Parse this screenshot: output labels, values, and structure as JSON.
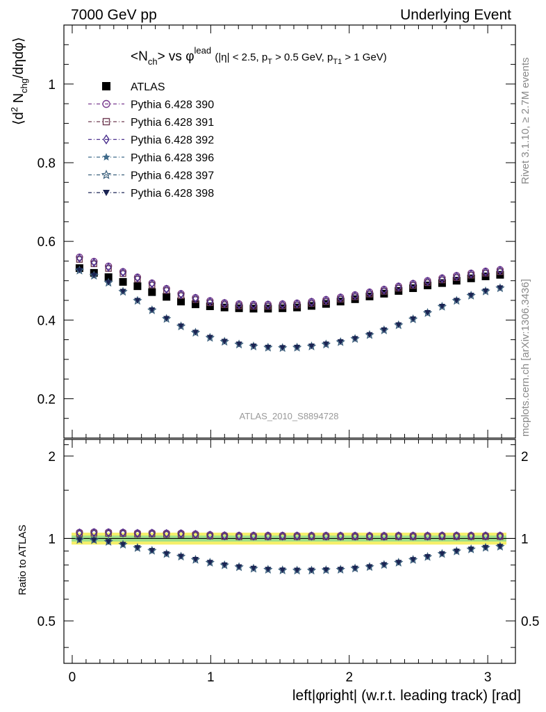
{
  "header": {
    "left": "7000 GeV pp",
    "right": "Underlying Event"
  },
  "side_labels": {
    "rivet": "Rivet 3.1.10, ≥ 2.7M events",
    "mcplots": "mcplots.cern.ch [arXiv:1306.3436]"
  },
  "analysis_id": "ATLAS_2010_S8894728",
  "chart_data": {
    "type": "scatter",
    "title": "<N_ch> vs φ^lead (|η| < 2.5, p_T > 0.5 GeV, p_T1 > 1 GeV)",
    "title_parts": {
      "main": "<N",
      "main_sub": "ch",
      "vs": "> vs φ",
      "sup": "lead",
      "cut1": "(|η| < 2.5, p",
      "cut1_sub": "T",
      "cut2": "> 0.5 GeV, p",
      "cut2_sub": "T1",
      "cut3": "> 1 GeV)"
    },
    "xlabel": "left|φright| (w.r.t. leading track) [rad]",
    "ylabel_parts": {
      "open": "⟨d",
      "sup": "2",
      "mid": " N",
      "sub": "chg",
      "close": "/dηdφ⟩"
    },
    "ratio_ylabel": "Ratio to ATLAS",
    "xlim": [
      -0.06,
      3.2
    ],
    "ylim": [
      0.1,
      1.15
    ],
    "ratio_ylim": [
      0.35,
      2.3
    ],
    "x_ticks": [
      0,
      1,
      2,
      3
    ],
    "y_ticks": [
      0.2,
      0.4,
      0.6,
      0.8,
      1
    ],
    "ratio_y_ticks": [
      0.5,
      1,
      2
    ],
    "legend_position": "top-left",
    "x": [
      0.0524,
      0.1571,
      0.2618,
      0.3665,
      0.4712,
      0.576,
      0.6807,
      0.7854,
      0.8901,
      0.9948,
      1.0996,
      1.2043,
      1.309,
      1.4137,
      1.5184,
      1.6232,
      1.7279,
      1.8326,
      1.9373,
      2.042,
      2.1468,
      2.2515,
      2.3562,
      2.4609,
      2.5656,
      2.6704,
      2.7751,
      2.8798,
      2.9845,
      3.0892
    ],
    "series": [
      {
        "name": "ATLAS",
        "marker": "filled-square",
        "color": "#000000",
        "values": [
          0.532,
          0.52,
          0.509,
          0.497,
          0.486,
          0.471,
          0.459,
          0.447,
          0.44,
          0.435,
          0.432,
          0.43,
          0.429,
          0.429,
          0.43,
          0.432,
          0.436,
          0.441,
          0.447,
          0.453,
          0.46,
          0.467,
          0.474,
          0.481,
          0.488,
          0.494,
          0.5,
          0.506,
          0.511,
          0.515
        ]
      },
      {
        "name": "Pythia 6.428 390",
        "marker": "open-circle",
        "color": "#7a3b8f",
        "values": [
          0.56,
          0.549,
          0.537,
          0.523,
          0.509,
          0.494,
          0.48,
          0.467,
          0.457,
          0.449,
          0.444,
          0.441,
          0.44,
          0.44,
          0.441,
          0.443,
          0.447,
          0.452,
          0.458,
          0.464,
          0.471,
          0.478,
          0.486,
          0.493,
          0.5,
          0.507,
          0.513,
          0.519,
          0.524,
          0.528
        ]
      },
      {
        "name": "Pythia 6.428 391",
        "marker": "open-square",
        "color": "#6e3a52",
        "values": [
          0.554,
          0.543,
          0.531,
          0.518,
          0.504,
          0.489,
          0.475,
          0.462,
          0.452,
          0.444,
          0.439,
          0.436,
          0.435,
          0.435,
          0.436,
          0.438,
          0.442,
          0.447,
          0.453,
          0.459,
          0.466,
          0.473,
          0.481,
          0.488,
          0.495,
          0.502,
          0.508,
          0.514,
          0.519,
          0.523
        ]
      },
      {
        "name": "Pythia 6.428 392",
        "marker": "open-diamond",
        "color": "#4a2f8c",
        "values": [
          0.557,
          0.546,
          0.534,
          0.521,
          0.507,
          0.492,
          0.478,
          0.465,
          0.455,
          0.447,
          0.442,
          0.439,
          0.438,
          0.438,
          0.439,
          0.441,
          0.445,
          0.45,
          0.456,
          0.462,
          0.469,
          0.476,
          0.484,
          0.491,
          0.498,
          0.505,
          0.511,
          0.517,
          0.522,
          0.526
        ]
      },
      {
        "name": "Pythia 6.428 396",
        "marker": "filled-star",
        "color": "#3f6a8a",
        "values": [
          0.528,
          0.515,
          0.497,
          0.474,
          0.451,
          0.427,
          0.405,
          0.386,
          0.37,
          0.357,
          0.347,
          0.34,
          0.335,
          0.332,
          0.331,
          0.332,
          0.335,
          0.34,
          0.346,
          0.354,
          0.364,
          0.376,
          0.389,
          0.404,
          0.42,
          0.436,
          0.451,
          0.464,
          0.475,
          0.483
        ]
      },
      {
        "name": "Pythia 6.428 397",
        "marker": "open-star",
        "color": "#3b5f7c",
        "values": [
          0.526,
          0.513,
          0.495,
          0.472,
          0.449,
          0.425,
          0.403,
          0.384,
          0.368,
          0.355,
          0.345,
          0.338,
          0.333,
          0.33,
          0.329,
          0.33,
          0.333,
          0.338,
          0.344,
          0.352,
          0.362,
          0.374,
          0.387,
          0.402,
          0.418,
          0.434,
          0.449,
          0.462,
          0.473,
          0.481
        ]
      },
      {
        "name": "Pythia 6.428 398",
        "marker": "filled-triangle-down",
        "color": "#1b2453",
        "values": [
          0.527,
          0.514,
          0.496,
          0.473,
          0.45,
          0.426,
          0.404,
          0.385,
          0.369,
          0.356,
          0.346,
          0.339,
          0.334,
          0.331,
          0.33,
          0.331,
          0.334,
          0.339,
          0.345,
          0.353,
          0.363,
          0.375,
          0.388,
          0.403,
          0.419,
          0.435,
          0.45,
          0.463,
          0.474,
          0.482
        ]
      }
    ]
  }
}
